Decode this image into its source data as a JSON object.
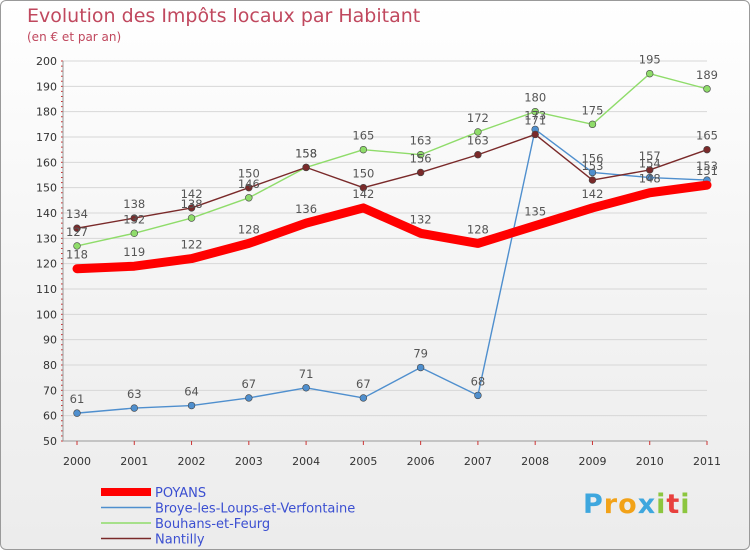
{
  "title": "Evolution des Impôts locaux par Habitant",
  "subtitle": "(en € et par an)",
  "logo": {
    "letters": [
      "P",
      "r",
      "o",
      "x",
      "i",
      "t",
      "i"
    ],
    "colors": [
      "#3ea7de",
      "#f2a218",
      "#f2a218",
      "#3ea7de",
      "#8cc63f",
      "#e8403d",
      "#8cc63f"
    ]
  },
  "chart_data": {
    "type": "line",
    "x": [
      "2000",
      "2001",
      "2002",
      "2003",
      "2004",
      "2005",
      "2006",
      "2007",
      "2008",
      "2009",
      "2010",
      "2011"
    ],
    "ylim": [
      50,
      200
    ],
    "yticks": [
      50,
      60,
      70,
      80,
      90,
      100,
      110,
      120,
      130,
      140,
      150,
      160,
      170,
      180,
      190,
      200
    ],
    "grid": true,
    "legend": "bottom-left",
    "series": [
      {
        "name": "Broye-les-Loups-et-Verfontaine",
        "color": "#4f8fce",
        "values": [
          61,
          63,
          64,
          67,
          71,
          67,
          79,
          68,
          173,
          156,
          154,
          153
        ]
      },
      {
        "name": "Bouhans-et-Feurg",
        "color": "#8fdc6a",
        "values": [
          127,
          132,
          138,
          146,
          158,
          165,
          163,
          172,
          180,
          175,
          195,
          189
        ]
      },
      {
        "name": "Nantilly",
        "color": "#7a2a2a",
        "values": [
          134,
          138,
          142,
          150,
          158,
          150,
          156,
          163,
          171,
          153,
          157,
          165
        ]
      },
      {
        "name": "POYANS",
        "color": "#ff0000",
        "values": [
          118,
          119,
          122,
          128,
          136,
          142,
          132,
          128,
          135,
          142,
          148,
          151
        ]
      }
    ]
  }
}
